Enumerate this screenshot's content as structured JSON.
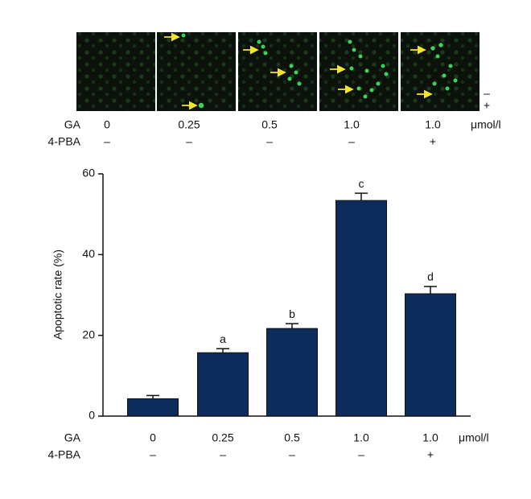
{
  "chart_data": {
    "type": "bar",
    "categories": [
      "0",
      "0.25",
      "0.5",
      "1.0",
      "1.0"
    ],
    "condition_rows": [
      {
        "label": "GA",
        "values": [
          "0",
          "0.25",
          "0.5",
          "1.0",
          "1.0"
        ],
        "unit": "μmol/l"
      },
      {
        "label": "4-PBA",
        "values": [
          "–",
          "–",
          "–",
          "–",
          "+"
        ]
      }
    ],
    "image_side_labels": [
      "–",
      "+"
    ],
    "values": [
      4.3,
      15.7,
      21.7,
      53.4,
      30.3
    ],
    "errors": [
      0.8,
      1.0,
      1.2,
      1.8,
      1.8
    ],
    "bar_labels": [
      null,
      "a",
      "b",
      "c",
      "d"
    ],
    "color": "#0d2c5b",
    "y_label": "Apoptotic rate (%)",
    "ylim": [
      0,
      60
    ],
    "yticks": [
      0,
      20,
      40,
      60
    ]
  }
}
